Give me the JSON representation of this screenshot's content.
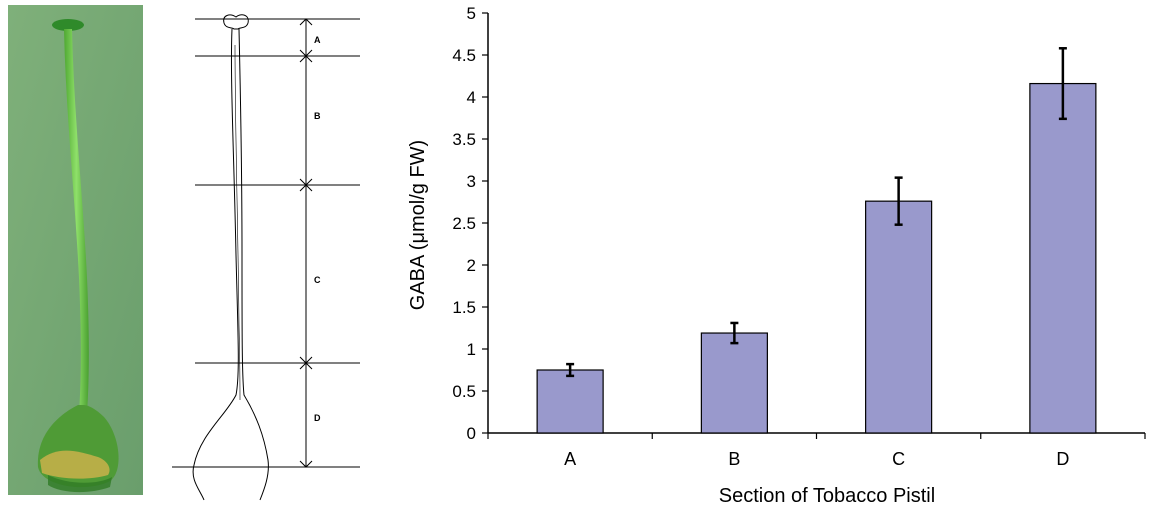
{
  "schematic": {
    "section_labels": [
      "A",
      "B",
      "C",
      "D"
    ]
  },
  "chart_data": {
    "type": "bar",
    "xlabel": "Section of Tobacco Pistil",
    "ylabel": "GABA (μmol/g FW)",
    "categories": [
      "A",
      "B",
      "C",
      "D"
    ],
    "values": [
      0.75,
      1.19,
      2.76,
      4.16
    ],
    "errors": [
      0.07,
      0.12,
      0.28,
      0.42
    ],
    "ylim": [
      0,
      5
    ],
    "yticks": [
      "0",
      "0.5",
      "1",
      "1.5",
      "2",
      "2.5",
      "3",
      "3.5",
      "4",
      "4.5",
      "5"
    ],
    "bar_color": "#9999cc",
    "grid": false,
    "legend": "none"
  },
  "colors": {
    "photo_background": "#7cab78",
    "pistil_green": "#5fbf3f",
    "bar_fill": "#9999cc",
    "axis": "#000000"
  }
}
